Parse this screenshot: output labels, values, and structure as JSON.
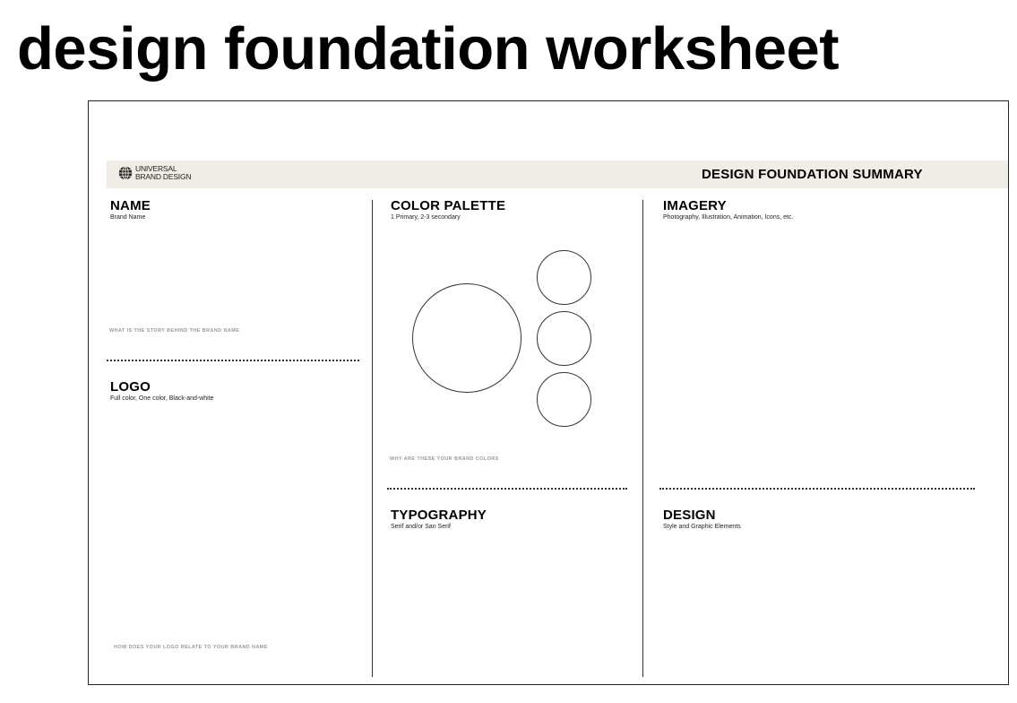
{
  "page_title": "design foundation worksheet",
  "header": {
    "brand_line1": "UNIVERSAL",
    "brand_line2": "BRAND DESIGN",
    "summary_title": "DESIGN FOUNDATION SUMMARY"
  },
  "sections": {
    "name": {
      "title": "NAME",
      "subtitle": "Brand Name",
      "prompt": "WHAT IS THE STORY BEHIND THE BRAND NAME"
    },
    "logo": {
      "title": "LOGO",
      "subtitle": "Full color, One color, Black-and-white",
      "prompt": "HOW DOES YOUR LOGO RELATE TO YOUR BRAND NAME"
    },
    "color_palette": {
      "title": "COLOR PALETTE",
      "subtitle": "1 Primary, 2-3 secondary",
      "prompt": "WHY ARE THESE YOUR BRAND COLORS"
    },
    "typography": {
      "title": "TYPOGRAPHY",
      "subtitle": "Serif and/or San Serif"
    },
    "imagery": {
      "title": "IMAGERY",
      "subtitle": "Photography, Illustration, Animation, Icons, etc."
    },
    "design": {
      "title": "DESIGN",
      "subtitle": "Style and Graphic Elements"
    }
  },
  "icons": {
    "brand_logo": "globe-icon"
  }
}
